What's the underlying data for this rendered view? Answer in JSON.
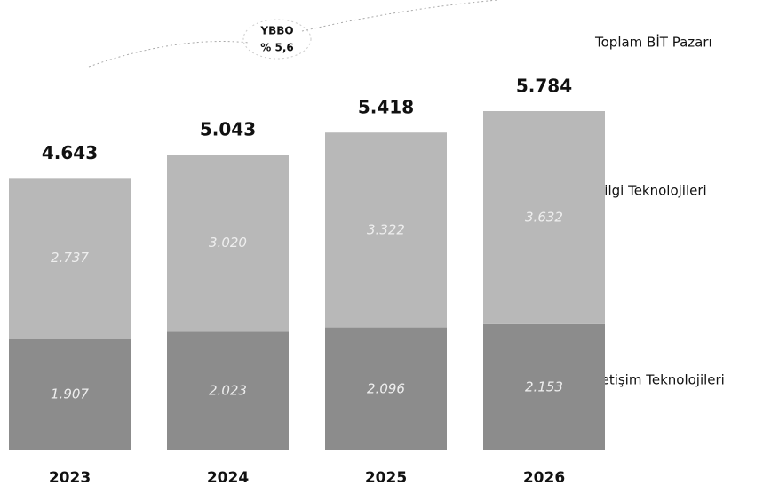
{
  "chart_data": {
    "type": "stacked_bar",
    "categories": [
      "2023",
      "2024",
      "2025",
      "2026"
    ],
    "series": [
      {
        "name": "İletişim Teknolojileri",
        "color": "#8c8c8c",
        "values": [
          1907,
          2023,
          2096,
          2153
        ],
        "value_labels": [
          "1.907",
          "2.023",
          "2.096",
          "2.153"
        ]
      },
      {
        "name": "Bilgi Teknolojileri",
        "color": "#b8b8b8",
        "values": [
          2737,
          3020,
          3322,
          3632
        ],
        "value_labels": [
          "2.737",
          "3.020",
          "3.322",
          "3.632"
        ]
      }
    ],
    "totals": {
      "name": "Toplam BİT Pazarı",
      "values": [
        4643,
        5043,
        5418,
        5784
      ],
      "value_labels": [
        "4.643",
        "5.043",
        "5.418",
        "5.784"
      ]
    },
    "annotation": {
      "label": "YBBO",
      "value": "% 5,6"
    }
  }
}
